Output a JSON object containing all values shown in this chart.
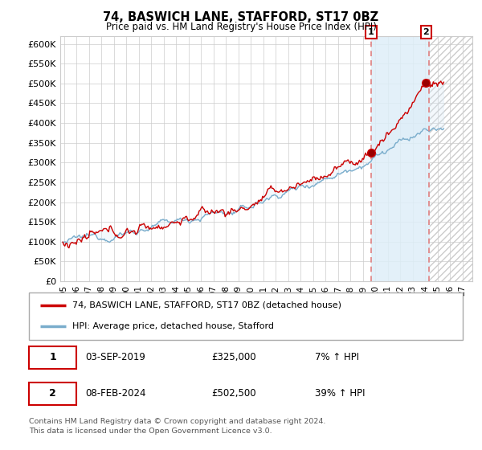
{
  "title": "74, BASWICH LANE, STAFFORD, ST17 0BZ",
  "subtitle": "Price paid vs. HM Land Registry's House Price Index (HPI)",
  "background_color": "#ffffff",
  "plot_bg_color": "#ffffff",
  "grid_color": "#cccccc",
  "red_line_color": "#cc0000",
  "blue_line_color": "#7aadcc",
  "shade_color": "#d8eaf7",
  "highlight_color": "#deeef8",
  "hatch_color": "#cccccc",
  "dashed_line_color": "#e08080",
  "ylim": [
    0,
    620000
  ],
  "yticks": [
    0,
    50000,
    100000,
    150000,
    200000,
    250000,
    300000,
    350000,
    400000,
    450000,
    500000,
    550000,
    600000
  ],
  "ytick_labels": [
    "£0",
    "£50K",
    "£100K",
    "£150K",
    "£200K",
    "£250K",
    "£300K",
    "£350K",
    "£400K",
    "£450K",
    "£500K",
    "£550K",
    "£600K"
  ],
  "xmin": 1994.7,
  "xmax": 2027.8,
  "xtick_years": [
    1995,
    1996,
    1997,
    1998,
    1999,
    2000,
    2001,
    2002,
    2003,
    2004,
    2005,
    2006,
    2007,
    2008,
    2009,
    2010,
    2011,
    2012,
    2013,
    2014,
    2015,
    2016,
    2017,
    2018,
    2019,
    2020,
    2021,
    2022,
    2023,
    2024,
    2025,
    2026,
    2027
  ],
  "sale1_x": 2019.67,
  "sale1_y": 325000,
  "sale2_x": 2024.08,
  "sale2_y": 502500,
  "highlight_x1": 2019.67,
  "highlight_x2": 2024.33,
  "hatch_x1": 2024.33,
  "hatch_x2": 2028.0,
  "legend_line1": "74, BASWICH LANE, STAFFORD, ST17 0BZ (detached house)",
  "legend_line2": "HPI: Average price, detached house, Stafford",
  "table_rows": [
    {
      "num": "1",
      "date": "03-SEP-2019",
      "price": "£325,000",
      "hpi": "7% ↑ HPI"
    },
    {
      "num": "2",
      "date": "08-FEB-2024",
      "price": "£502,500",
      "hpi": "39% ↑ HPI"
    }
  ],
  "footnote1": "Contains HM Land Registry data © Crown copyright and database right 2024.",
  "footnote2": "This data is licensed under the Open Government Licence v3.0."
}
